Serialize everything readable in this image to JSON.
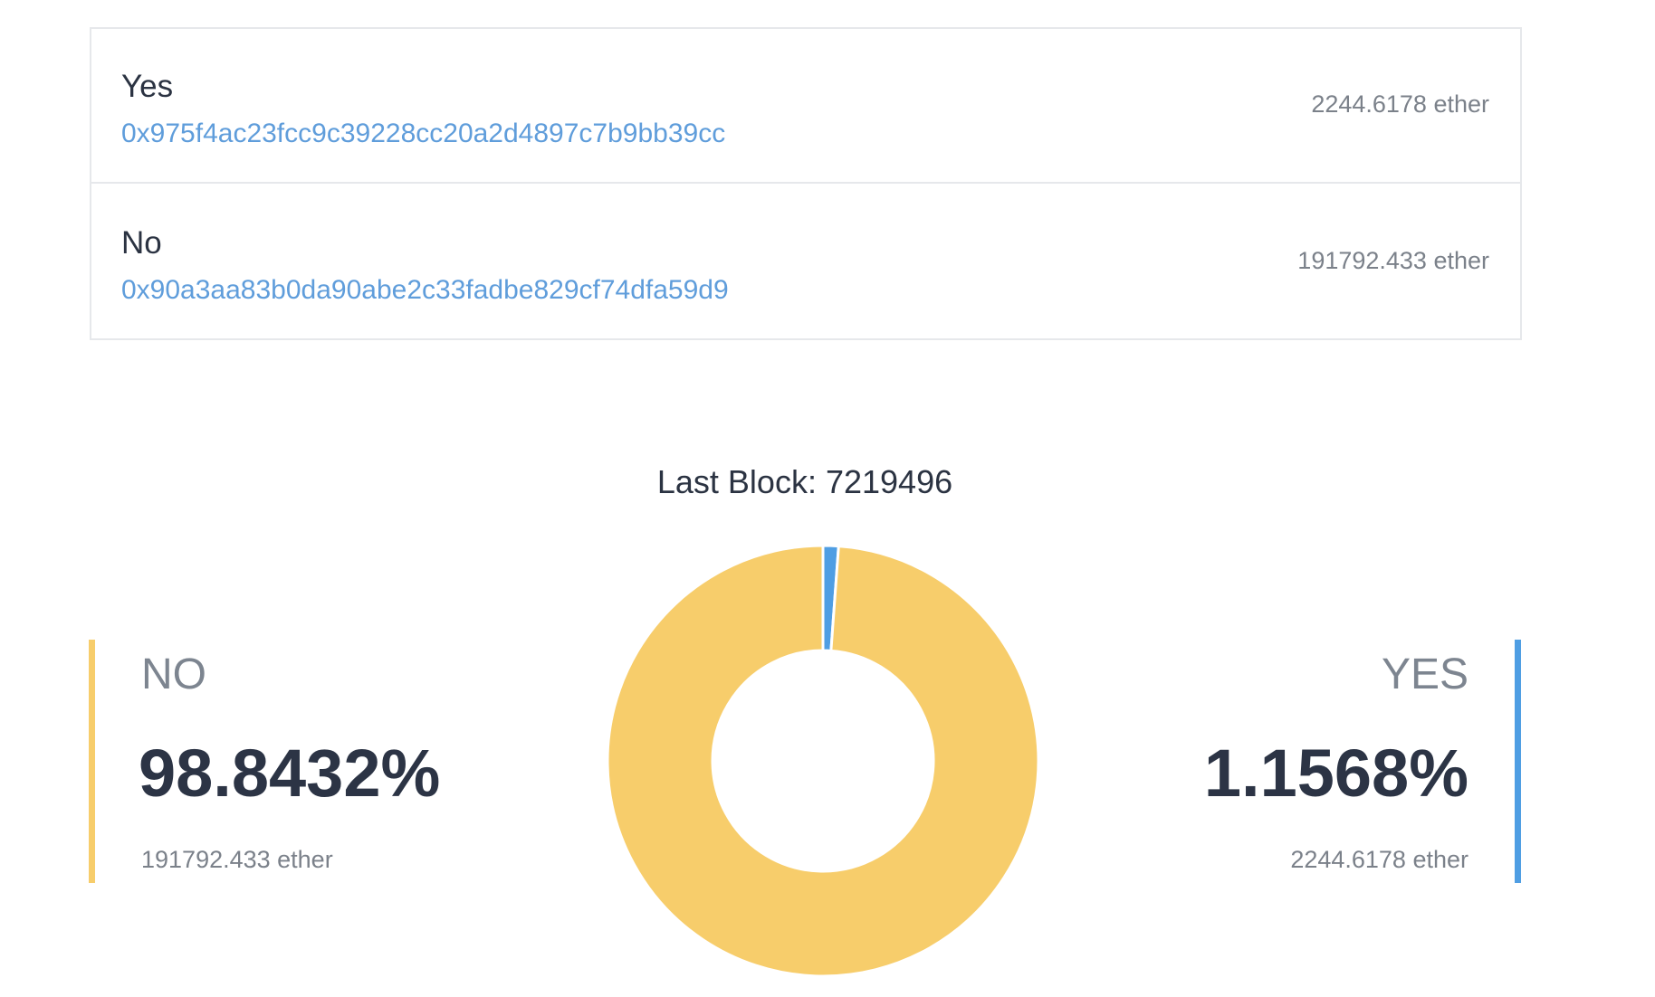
{
  "options": [
    {
      "label": "Yes",
      "address": "0x975f4ac23fcc9c39228cc20a2d4897c7b9bb39cc",
      "amount": "2244.6178 ether"
    },
    {
      "label": "No",
      "address": "0x90a3aa83b0da90abe2c33fadbe829cf74dfa59d9",
      "amount": "191792.433 ether"
    }
  ],
  "last_block": "Last Block: 7219496",
  "chart_data": {
    "type": "donut",
    "categories": [
      "YES",
      "NO"
    ],
    "values": [
      1.1568,
      98.8432
    ],
    "value_labels": [
      "1.1568%",
      "98.8432%"
    ],
    "colors": [
      "#4f9ee3",
      "#f7cd6b"
    ]
  }
}
